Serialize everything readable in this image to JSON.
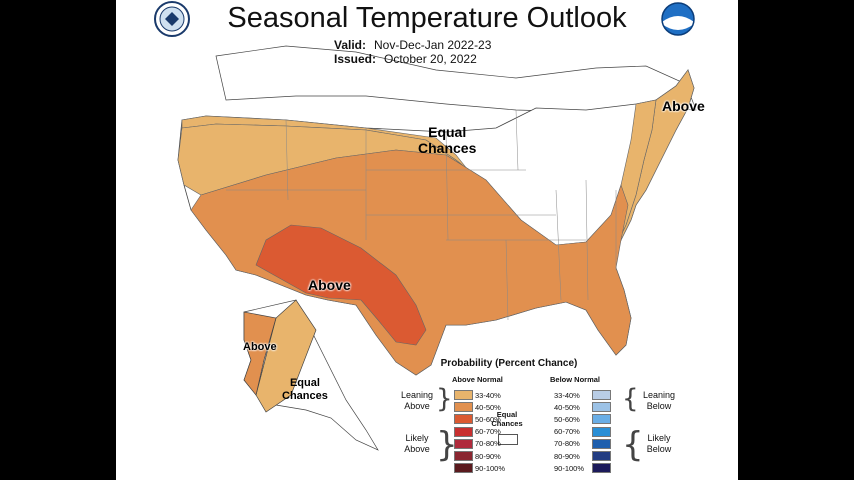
{
  "title": "Seasonal Temperature Outlook",
  "valid": {
    "label": "Valid:",
    "value": "Nov-Dec-Jan 2022-23"
  },
  "issued": {
    "label": "Issued:",
    "value": "October 20, 2022"
  },
  "labels": {
    "conus_equal_1": "Equal",
    "conus_equal_2": "Chances",
    "conus_above": "Above",
    "ne_above": "Above",
    "ak_above": "Above",
    "ak_equal_1": "Equal",
    "ak_equal_2": "Chances"
  },
  "legend": {
    "title": "Probability (Percent Chance)",
    "above_heading": "Above Normal",
    "below_heading": "Below Normal",
    "equal_1": "Equal",
    "equal_2": "Chances",
    "leaning_above_1": "Leaning",
    "leaning_above_2": "Above",
    "likely_above_1": "Likely",
    "likely_above_2": "Above",
    "leaning_below_1": "Leaning",
    "leaning_below_2": "Below",
    "likely_below_1": "Likely",
    "likely_below_2": "Below",
    "above_bins": [
      {
        "label": "33-40%",
        "color": "#e8b46c"
      },
      {
        "label": "40-50%",
        "color": "#e1904f"
      },
      {
        "label": "50-60%",
        "color": "#db5a32"
      },
      {
        "label": "60-70%",
        "color": "#c83030"
      },
      {
        "label": "70-80%",
        "color": "#b02a3c"
      },
      {
        "label": "80-90%",
        "color": "#8a2630"
      },
      {
        "label": "90-100%",
        "color": "#5a1a1e"
      }
    ],
    "below_bins": [
      {
        "label": "33-40%",
        "color": "#b9cde6"
      },
      {
        "label": "40-50%",
        "color": "#9cc2e6"
      },
      {
        "label": "50-60%",
        "color": "#6aaee6"
      },
      {
        "label": "60-70%",
        "color": "#2a8fd6"
      },
      {
        "label": "70-80%",
        "color": "#1e5fae"
      },
      {
        "label": "80-90%",
        "color": "#223c82"
      },
      {
        "label": "90-100%",
        "color": "#1c1a5a"
      }
    ]
  }
}
